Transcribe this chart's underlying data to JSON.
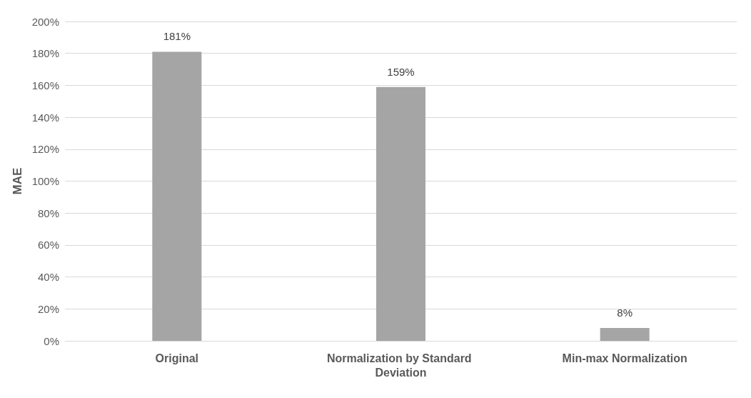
{
  "chart_data": {
    "type": "bar",
    "ylabel": "MAE",
    "categories": [
      "Original",
      "Normalization by Standard Deviation",
      "Min-max Normalization"
    ],
    "values": [
      181,
      159,
      8
    ],
    "color": "#a5a5a5",
    "value_labels": [
      "181%",
      "159%",
      "8%"
    ],
    "ylim": [
      0,
      200
    ],
    "yticks": [
      {
        "value": 0,
        "label": "0%"
      },
      {
        "value": 20,
        "label": "20%"
      },
      {
        "value": 40,
        "label": "40%"
      },
      {
        "value": 60,
        "label": "60%"
      },
      {
        "value": 80,
        "label": "80%"
      },
      {
        "value": 100,
        "label": "100%"
      },
      {
        "value": 120,
        "label": "120%"
      },
      {
        "value": 140,
        "label": "140%"
      },
      {
        "value": 160,
        "label": "160%"
      },
      {
        "value": 180,
        "label": "180%"
      },
      {
        "value": 200,
        "label": "200%"
      }
    ],
    "grid": true
  }
}
